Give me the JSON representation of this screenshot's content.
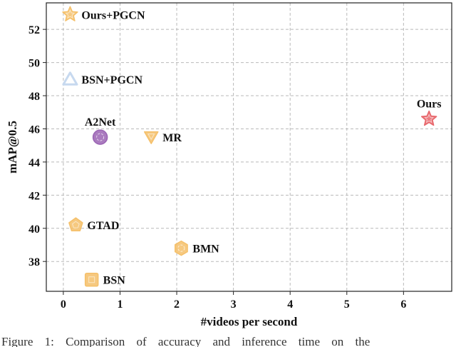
{
  "chart_data": {
    "type": "scatter",
    "xlabel": "#videos per second",
    "ylabel": "mAP@0.5",
    "xlim": [
      -0.3,
      6.85
    ],
    "ylim": [
      36.2,
      53.6
    ],
    "xticks": [
      0,
      1,
      2,
      3,
      4,
      5,
      6
    ],
    "yticks": [
      38,
      40,
      42,
      44,
      46,
      48,
      50,
      52
    ],
    "grid": true,
    "points": [
      {
        "name": "Ours+PGCN",
        "x": 0.12,
        "y": 52.9,
        "marker": "star",
        "color": "#f5c06a",
        "label_pos": "right"
      },
      {
        "name": "BSN+PGCN",
        "x": 0.12,
        "y": 49.0,
        "marker": "triangle-up",
        "color": "#c7d9ef",
        "label_pos": "right"
      },
      {
        "name": "Ours",
        "x": 6.45,
        "y": 46.6,
        "marker": "star",
        "color": "#e8666b",
        "label_pos": "above"
      },
      {
        "name": "A2Net",
        "x": 0.65,
        "y": 45.5,
        "marker": "circle",
        "color": "#9b64b4",
        "label_pos": "above"
      },
      {
        "name": "MR",
        "x": 1.55,
        "y": 45.5,
        "marker": "triangle-down",
        "color": "#f5c06a",
        "label_pos": "right"
      },
      {
        "name": "GTAD",
        "x": 0.22,
        "y": 40.2,
        "marker": "pentagon",
        "color": "#f5c06a",
        "label_pos": "right"
      },
      {
        "name": "BMN",
        "x": 2.08,
        "y": 38.8,
        "marker": "hexagon",
        "color": "#f5c06a",
        "label_pos": "right"
      },
      {
        "name": "BSN",
        "x": 0.5,
        "y": 36.9,
        "marker": "square",
        "color": "#f5c06a",
        "label_pos": "right"
      }
    ]
  },
  "caption": "Figure 1:  Comparison  of  accuracy  and  inference  time  on  the"
}
